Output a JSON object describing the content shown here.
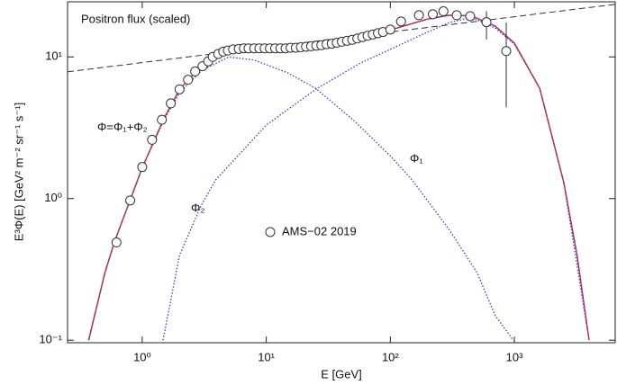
{
  "chart_data": {
    "type": "scatter",
    "title": "Positron flux (scaled)",
    "xlabel": "E [GeV]",
    "ylabel": "E³Φ(E) [GeV² m⁻² sr⁻¹ s⁻¹]",
    "xscale": "log",
    "yscale": "log",
    "xlim": [
      0.25,
      6500
    ],
    "ylim": [
      0.096,
      24.5
    ],
    "xticks": [
      {
        "value": 1,
        "label": "10⁰"
      },
      {
        "value": 10,
        "label": "10¹"
      },
      {
        "value": 100,
        "label": "10²"
      },
      {
        "value": 1000,
        "label": "10³"
      }
    ],
    "yticks": [
      {
        "value": 0.1,
        "label": "10⁻¹"
      },
      {
        "value": 1,
        "label": "10⁰"
      },
      {
        "value": 10,
        "label": "10¹"
      }
    ],
    "series": [
      {
        "name": "AMS−02 2019",
        "kind": "points",
        "color": "#333333",
        "x": [
          0.62,
          0.8,
          1.0,
          1.2,
          1.44,
          1.7,
          2.0,
          2.34,
          2.67,
          3.06,
          3.4,
          3.7,
          4.1,
          4.5,
          4.9,
          5.4,
          6.0,
          6.6,
          7.2,
          8.0,
          8.8,
          9.7,
          10.7,
          11.8,
          13.0,
          14.3,
          15.7,
          17.3,
          19.0,
          20.9,
          23.0,
          25.3,
          27.8,
          30.6,
          33.7,
          37.0,
          40.7,
          44.8,
          49.3,
          54.2,
          59.6,
          65.6,
          72.2,
          79.4,
          87.3,
          100,
          122,
          170,
          220,
          268,
          343,
          440,
          596,
          860
        ],
        "values": [
          0.49,
          0.97,
          1.67,
          2.6,
          3.6,
          4.7,
          5.9,
          6.9,
          7.9,
          8.6,
          9.3,
          10.0,
          10.5,
          10.9,
          11.1,
          11.3,
          11.4,
          11.5,
          11.5,
          11.5,
          11.5,
          11.5,
          11.5,
          11.5,
          11.5,
          11.5,
          11.6,
          11.6,
          11.7,
          11.8,
          11.9,
          12.0,
          12.1,
          12.3,
          12.4,
          12.6,
          12.8,
          13.0,
          13.2,
          13.5,
          13.8,
          14.1,
          14.4,
          14.7,
          15.0,
          15.6,
          17.8,
          19.7,
          20.0,
          21.0,
          19.7,
          19.4,
          17.6,
          11.0
        ],
        "errors": [
          null,
          null,
          null,
          null,
          null,
          null,
          null,
          null,
          null,
          null,
          null,
          null,
          null,
          null,
          null,
          null,
          null,
          null,
          null,
          null,
          null,
          null,
          null,
          null,
          null,
          null,
          null,
          null,
          null,
          null,
          null,
          null,
          null,
          null,
          null,
          null,
          null,
          null,
          null,
          null,
          null,
          null,
          null,
          null,
          null,
          null,
          null,
          null,
          null,
          null,
          null,
          null,
          [
            13.3,
            21.0
          ],
          [
            4.4,
            17.5
          ]
        ]
      },
      {
        "name": "Φ=Φ₁+Φ₂",
        "kind": "total",
        "color": "#d62728",
        "dash_color": "#7b3fa0",
        "x": [
          0.37,
          0.5,
          0.6,
          0.8,
          1.0,
          1.5,
          2,
          3,
          4,
          6,
          10,
          20,
          40,
          70,
          100,
          200,
          300,
          450,
          700,
          1000,
          1600,
          2500,
          3200,
          4000
        ],
        "values": [
          0.1,
          0.3,
          0.5,
          0.98,
          1.65,
          3.7,
          5.9,
          8.6,
          10.2,
          11.2,
          11.3,
          11.6,
          12.5,
          14,
          15.5,
          18.5,
          19.7,
          19.5,
          16.5,
          12.5,
          6,
          1.3,
          0.4,
          0.1
        ]
      },
      {
        "name": "Φ₁",
        "kind": "dotted",
        "color": "#3a3acc",
        "x": [
          0.37,
          0.5,
          0.6,
          0.8,
          1.0,
          1.5,
          2,
          3,
          5,
          8,
          15,
          25,
          50,
          100,
          150,
          300,
          500,
          700,
          980
        ],
        "values": [
          0.1,
          0.3,
          0.5,
          0.98,
          1.65,
          3.6,
          5.6,
          8.0,
          10,
          9.5,
          7.7,
          6,
          3.6,
          2,
          1.35,
          0.6,
          0.3,
          0.15,
          0.1
        ]
      },
      {
        "name": "Φ₂",
        "kind": "dotted",
        "color": "#3a3acc",
        "x": [
          1.47,
          2,
          3,
          3.9,
          10,
          25,
          58,
          100,
          200,
          300,
          450,
          700,
          1000,
          1600,
          2500,
          4000
        ],
        "values": [
          0.1,
          0.4,
          0.9,
          1.35,
          3.3,
          5.9,
          9.1,
          11.3,
          15,
          17.5,
          19,
          16,
          12.3,
          6,
          1.3,
          0.1
        ]
      },
      {
        "kind": "dashed",
        "color": "#333333",
        "x": [
          0.25,
          6500
        ],
        "values": [
          7.85,
          23.5
        ]
      }
    ]
  }
}
